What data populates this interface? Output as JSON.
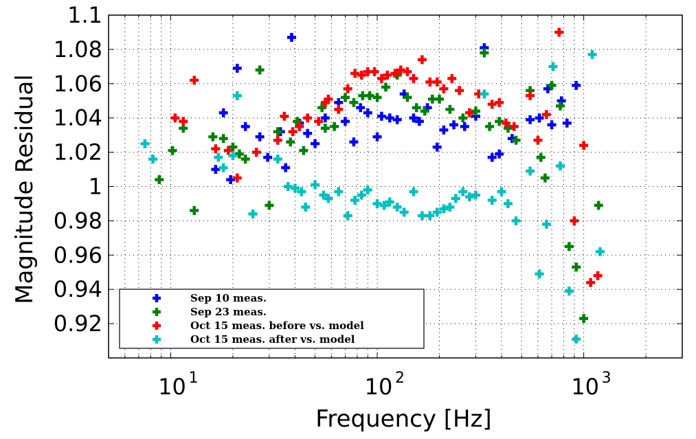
{
  "chart_data": {
    "type": "scatter",
    "xlabel": "Frequency [Hz]",
    "ylabel": "Magnitude Residual",
    "x_scale": "log",
    "xlim": [
      5,
      3000
    ],
    "ylim": [
      0.9,
      1.1
    ],
    "x_tick_labels": [
      {
        "value": 10,
        "base": "10",
        "exp": "1"
      },
      {
        "value": 100,
        "base": "10",
        "exp": "2"
      },
      {
        "value": 1000,
        "base": "10",
        "exp": "3"
      }
    ],
    "y_tick_labels": [
      "0.92",
      "0.94",
      "0.96",
      "0.98",
      "1",
      "1.02",
      "1.04",
      "1.06",
      "1.08",
      "1.1"
    ],
    "y_tick_values": [
      0.92,
      0.94,
      0.96,
      0.98,
      1.0,
      1.02,
      1.04,
      1.06,
      1.08,
      1.1
    ],
    "grid": true,
    "legend_position": "bottom-left",
    "marker": "plus",
    "series": [
      {
        "name": "Sep 10 meas.",
        "color": "#0000ff",
        "points": [
          [
            16.5,
            1.01
          ],
          [
            18,
            1.043
          ],
          [
            19.5,
            1.004
          ],
          [
            21,
            1.069
          ],
          [
            23,
            1.035
          ],
          [
            27,
            1.029
          ],
          [
            29.5,
            1.017
          ],
          [
            34,
            1.032
          ],
          [
            36,
            1.011
          ],
          [
            38.5,
            1.087
          ],
          [
            42,
            1.037
          ],
          [
            46,
            1.031
          ],
          [
            50,
            1.025
          ],
          [
            56,
            1.04
          ],
          [
            65,
            1.049
          ],
          [
            70,
            1.038
          ],
          [
            77,
            1.026
          ],
          [
            83,
            1.046
          ],
          [
            90,
            1.043
          ],
          [
            100,
            1.029
          ],
          [
            105,
            1.041
          ],
          [
            115,
            1.04
          ],
          [
            125,
            1.039
          ],
          [
            135,
            1.054
          ],
          [
            150,
            1.04
          ],
          [
            160,
            1.038
          ],
          [
            175,
            1.046
          ],
          [
            195,
            1.023
          ],
          [
            210,
            1.033
          ],
          [
            235,
            1.036
          ],
          [
            265,
            1.035
          ],
          [
            300,
            1.041
          ],
          [
            330,
            1.081
          ],
          [
            360,
            1.017
          ],
          [
            390,
            1.019
          ],
          [
            450,
            1.028
          ],
          [
            550,
            1.039
          ],
          [
            610,
            1.04
          ],
          [
            670,
            1.057
          ],
          [
            700,
            1.036
          ],
          [
            780,
            1.05
          ],
          [
            830,
            1.037
          ],
          [
            920,
            1.059
          ]
        ]
      },
      {
        "name": "Sep 23 meas.",
        "color": "#008000",
        "points": [
          [
            8.8,
            1.004
          ],
          [
            10.2,
            1.021
          ],
          [
            11.5,
            1.034
          ],
          [
            13,
            0.986
          ],
          [
            16,
            1.029
          ],
          [
            18,
            1.028
          ],
          [
            20,
            1.023
          ],
          [
            21.5,
            1.019
          ],
          [
            23,
            1.016
          ],
          [
            27,
            1.068
          ],
          [
            30,
            0.989
          ],
          [
            33,
            1.032
          ],
          [
            38,
            1.026
          ],
          [
            41,
            1.038
          ],
          [
            44,
            1.021
          ],
          [
            54,
            1.046
          ],
          [
            56,
            1.034
          ],
          [
            62,
            1.035
          ],
          [
            70,
            1.052
          ],
          [
            77,
            1.049
          ],
          [
            85,
            1.053
          ],
          [
            92,
            1.053
          ],
          [
            100,
            1.052
          ],
          [
            110,
            1.058
          ],
          [
            125,
            1.065
          ],
          [
            140,
            1.052
          ],
          [
            155,
            1.046
          ],
          [
            170,
            1.044
          ],
          [
            185,
            1.051
          ],
          [
            200,
            1.051
          ],
          [
            225,
            1.045
          ],
          [
            260,
            1.04
          ],
          [
            300,
            1.044
          ],
          [
            330,
            1.078
          ],
          [
            350,
            1.035
          ],
          [
            390,
            1.038
          ],
          [
            430,
            1.034
          ],
          [
            470,
            1.027
          ],
          [
            550,
            1.056
          ],
          [
            620,
            1.017
          ],
          [
            650,
            1.005
          ],
          [
            700,
            1.059
          ],
          [
            770,
            1.047
          ],
          [
            850,
            0.965
          ],
          [
            920,
            0.953
          ],
          [
            1000,
            0.923
          ],
          [
            1180,
            0.989
          ]
        ]
      },
      {
        "name": "Oct 15 meas. before vs. model",
        "color": "#ff0000",
        "points": [
          [
            10.5,
            1.04
          ],
          [
            11.5,
            1.038
          ],
          [
            13,
            1.062
          ],
          [
            16.5,
            1.022
          ],
          [
            19,
            1.021
          ],
          [
            21,
            1.005
          ],
          [
            26,
            1.02
          ],
          [
            33,
            1.027
          ],
          [
            35.5,
            1.041
          ],
          [
            39,
            1.032
          ],
          [
            42,
            1.035
          ],
          [
            46,
            1.04
          ],
          [
            52,
            1.038
          ],
          [
            56,
            1.049
          ],
          [
            58,
            1.051
          ],
          [
            65,
            1.045
          ],
          [
            72,
            1.057
          ],
          [
            78,
            1.066
          ],
          [
            84,
            1.065
          ],
          [
            90,
            1.067
          ],
          [
            97,
            1.067
          ],
          [
            105,
            1.063
          ],
          [
            112,
            1.065
          ],
          [
            122,
            1.066
          ],
          [
            130,
            1.068
          ],
          [
            140,
            1.067
          ],
          [
            150,
            1.063
          ],
          [
            165,
            1.074
          ],
          [
            180,
            1.061
          ],
          [
            195,
            1.061
          ],
          [
            210,
            1.057
          ],
          [
            230,
            1.063
          ],
          [
            250,
            1.056
          ],
          [
            280,
            1.043
          ],
          [
            310,
            1.054
          ],
          [
            360,
            1.048
          ],
          [
            390,
            1.049
          ],
          [
            420,
            1.037
          ],
          [
            460,
            1.035
          ],
          [
            550,
            1.053
          ],
          [
            600,
            1.027
          ],
          [
            660,
            1.042
          ],
          [
            760,
            1.09
          ],
          [
            900,
            0.98
          ],
          [
            1000,
            1.024
          ],
          [
            1080,
            0.944
          ],
          [
            1170,
            0.948
          ]
        ]
      },
      {
        "name": "Oct 15 meas. after vs. model",
        "color": "#00bfbf",
        "points": [
          [
            7.5,
            1.025
          ],
          [
            8.2,
            1.016
          ],
          [
            17,
            1.017
          ],
          [
            18,
            1.011
          ],
          [
            20,
            1.018
          ],
          [
            21,
            1.053
          ],
          [
            25,
            0.984
          ],
          [
            33,
            1.016
          ],
          [
            37,
            1.0
          ],
          [
            40,
            0.999
          ],
          [
            43,
            0.997
          ],
          [
            45,
            0.988
          ],
          [
            50,
            1.001
          ],
          [
            55,
            0.995
          ],
          [
            58,
            0.993
          ],
          [
            65,
            0.997
          ],
          [
            72,
            0.983
          ],
          [
            78,
            0.992
          ],
          [
            84,
            0.995
          ],
          [
            90,
            0.998
          ],
          [
            100,
            0.99
          ],
          [
            108,
            0.989
          ],
          [
            115,
            0.991
          ],
          [
            125,
            0.988
          ],
          [
            135,
            0.985
          ],
          [
            150,
            0.997
          ],
          [
            165,
            0.983
          ],
          [
            180,
            0.983
          ],
          [
            195,
            0.985
          ],
          [
            210,
            0.987
          ],
          [
            225,
            0.988
          ],
          [
            240,
            0.993
          ],
          [
            260,
            0.997
          ],
          [
            280,
            0.994
          ],
          [
            300,
            0.995
          ],
          [
            330,
            1.054
          ],
          [
            360,
            0.992
          ],
          [
            400,
            0.997
          ],
          [
            430,
            0.99
          ],
          [
            470,
            0.98
          ],
          [
            550,
            1.009
          ],
          [
            610,
            0.949
          ],
          [
            660,
            0.978
          ],
          [
            710,
            1.07
          ],
          [
            770,
            1.012
          ],
          [
            850,
            0.939
          ],
          [
            920,
            0.911
          ],
          [
            1100,
            1.077
          ],
          [
            1200,
            0.962
          ]
        ]
      }
    ]
  }
}
